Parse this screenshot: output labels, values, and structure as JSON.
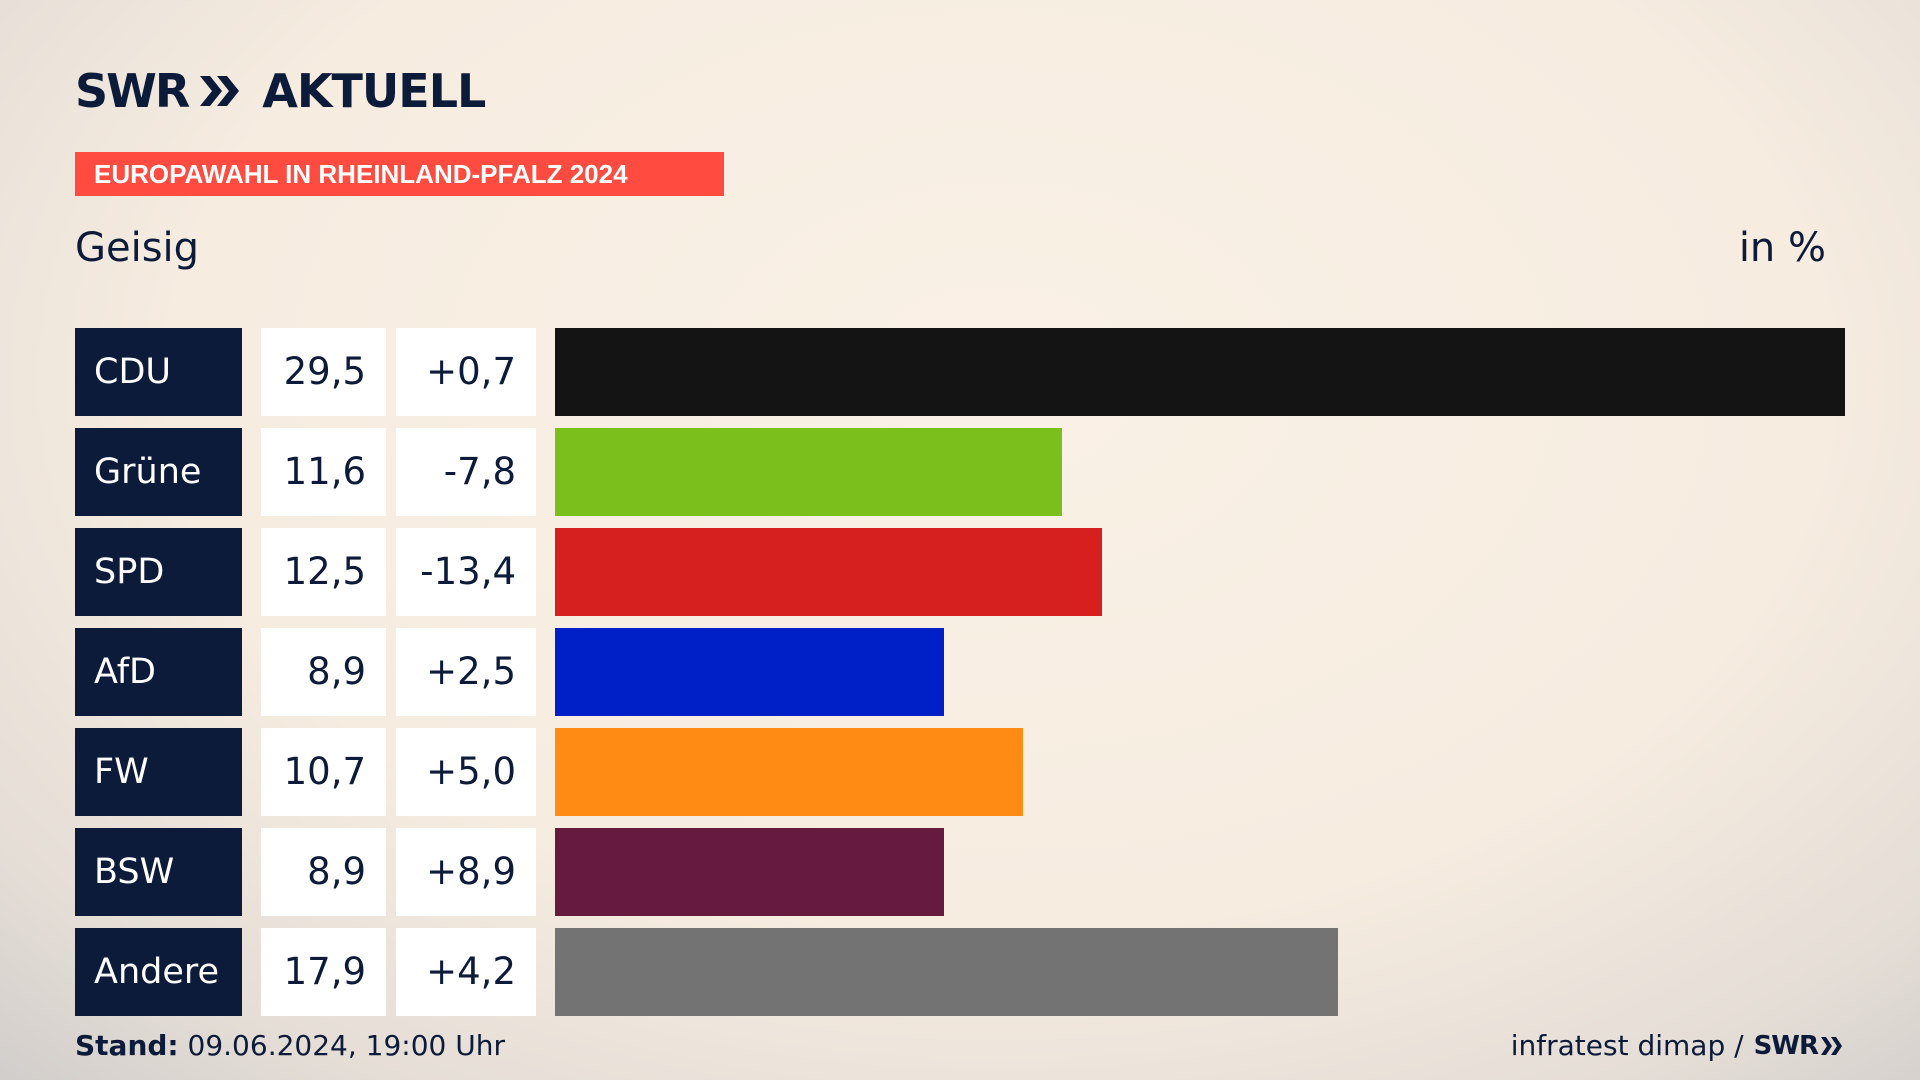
{
  "logo": {
    "brand": "SWR",
    "name": "AKTUELL"
  },
  "banner": "EUROPAWAHL IN RHEINLAND-PFALZ 2024",
  "location": "Geisig",
  "unit": "in %",
  "chart_data": {
    "type": "bar",
    "orientation": "horizontal",
    "categories": [
      "CDU",
      "Grüne",
      "SPD",
      "AfD",
      "FW",
      "BSW",
      "Andere"
    ],
    "values": [
      29.5,
      11.6,
      12.5,
      8.9,
      10.7,
      8.9,
      17.9
    ],
    "value_labels": [
      "29,5",
      "11,6",
      "12,5",
      "8,9",
      "10,7",
      "8,9",
      "17,9"
    ],
    "diff_labels": [
      "+0,7",
      "-7,8",
      "-13,4",
      "+2,5",
      "+5,0",
      "+8,9",
      "+4,2"
    ],
    "colors": [
      "#141414",
      "#7abf1c",
      "#d61f1f",
      "#0020c7",
      "#ff8b14",
      "#661a40",
      "#737373"
    ],
    "xlim": [
      0,
      29.5
    ],
    "grid": false
  },
  "footer": {
    "stand_label": "Stand:",
    "stand_value": "09.06.2024, 19:00 Uhr",
    "source": "infratest dimap /",
    "source_brand": "SWR"
  }
}
